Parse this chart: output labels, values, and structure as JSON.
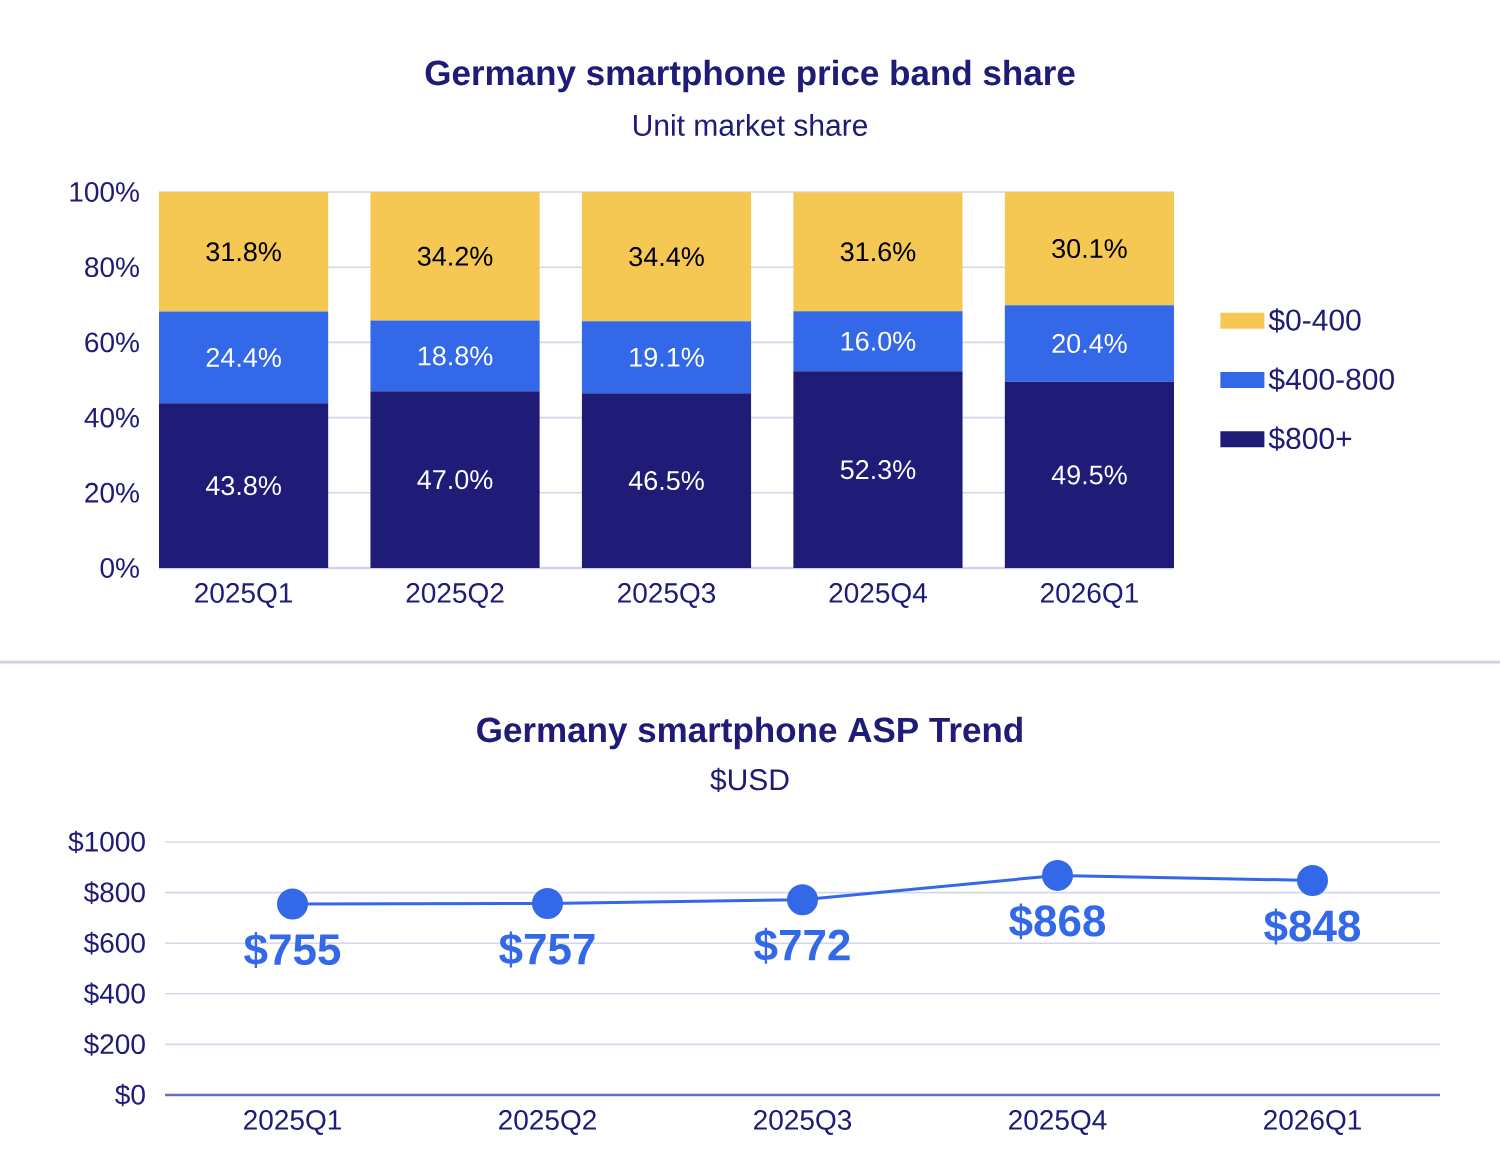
{
  "chart_data": [
    {
      "type": "bar",
      "title": "Germany smartphone price band share",
      "subtitle": "Unit market share",
      "categories": [
        "2025Q1",
        "2025Q2",
        "2025Q3",
        "2025Q4",
        "2026Q1"
      ],
      "stacked": true,
      "series": [
        {
          "name": "$800+",
          "color": "#1f1c78",
          "values": [
            43.8,
            47.0,
            46.5,
            52.3,
            49.5
          ],
          "value_labels": [
            "43.8%",
            "47.0%",
            "46.5%",
            "52.3%",
            "49.5%"
          ]
        },
        {
          "name": "$400-800",
          "color": "#3369e8",
          "values": [
            24.4,
            18.8,
            19.1,
            16.0,
            20.4
          ],
          "value_labels": [
            "24.4%",
            "18.8%",
            "19.1%",
            "16.0%",
            "20.4%"
          ]
        },
        {
          "name": "$0-400",
          "color": "#f5c853",
          "values": [
            31.8,
            34.2,
            34.4,
            31.6,
            30.1
          ],
          "value_labels": [
            "31.8%",
            "34.2%",
            "34.4%",
            "31.6%",
            "30.1%"
          ]
        }
      ],
      "ylim": [
        0,
        100
      ],
      "yticks": [
        {
          "value": 0,
          "label": "0%"
        },
        {
          "value": 20,
          "label": "20%"
        },
        {
          "value": 40,
          "label": "40%"
        },
        {
          "value": 60,
          "label": "60%"
        },
        {
          "value": 80,
          "label": "80%"
        },
        {
          "value": 100,
          "label": "100%"
        }
      ],
      "grid": "y",
      "legend": "right"
    },
    {
      "type": "line",
      "title": "Germany smartphone ASP Trend",
      "subtitle": "$USD",
      "categories": [
        "2025Q1",
        "2025Q2",
        "2025Q3",
        "2025Q4",
        "2026Q1"
      ],
      "values": [
        755,
        757,
        772,
        868,
        848
      ],
      "color": "#3369e8",
      "value_labels": [
        "$755",
        "$757",
        "$772",
        "$868",
        "$848"
      ],
      "ylim": [
        0,
        1000
      ],
      "yticks": [
        {
          "value": 0,
          "label": "$0"
        },
        {
          "value": 200,
          "label": "$200"
        },
        {
          "value": 400,
          "label": "$400"
        },
        {
          "value": 600,
          "label": "$600"
        },
        {
          "value": 800,
          "label": "$800"
        },
        {
          "value": 1000,
          "label": "$1000"
        }
      ],
      "grid": "y",
      "marker": "circle",
      "line_style": "solid"
    }
  ]
}
